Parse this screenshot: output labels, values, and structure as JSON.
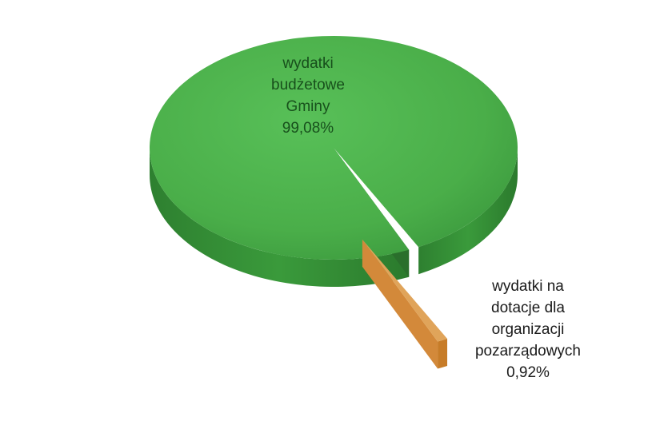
{
  "chart_data": {
    "type": "pie",
    "style": "3d",
    "slices": [
      {
        "label_lines": [
          "wydatki",
          "budżetowe",
          "Gminy"
        ],
        "percent_text": "99,08%",
        "value": 99.08,
        "color": "#4caf50",
        "side_color": "#2f8a33",
        "exploded": false
      },
      {
        "label_lines": [
          "wydatki na",
          "dotacje dla",
          "organizacji",
          "pozarządowych"
        ],
        "percent_text": "0,92%",
        "value": 0.92,
        "color": "#e0a45a",
        "side_color": "#c77c28",
        "exploded": true
      }
    ]
  }
}
